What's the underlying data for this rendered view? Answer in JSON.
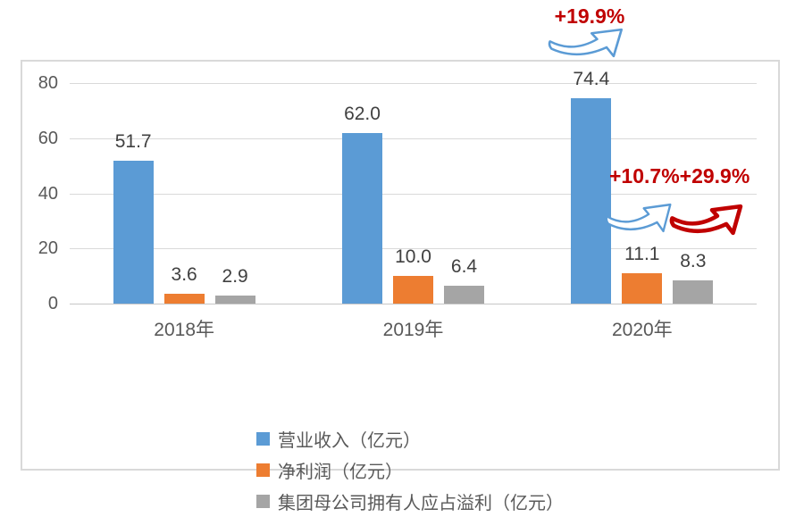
{
  "chart_data": {
    "type": "bar",
    "categories": [
      "2018年",
      "2019年",
      "2020年"
    ],
    "series": [
      {
        "name": "营业收入（亿元）",
        "color": "#5B9BD5",
        "values": [
          51.7,
          62.0,
          74.4
        ]
      },
      {
        "name": "净利润（亿元）",
        "color": "#ED7D31",
        "values": [
          3.6,
          10.0,
          11.1
        ]
      },
      {
        "name": "集团母公司拥有人应占溢利（亿元）",
        "color": "#A5A5A5",
        "values": [
          2.9,
          6.4,
          8.3
        ]
      }
    ],
    "data_labels": [
      "51.7",
      "3.6",
      "2.9",
      "62.0",
      "10.0",
      "6.4",
      "74.4",
      "11.1",
      "8.3"
    ],
    "y_ticks": [
      0,
      20,
      40,
      60,
      80
    ],
    "ylim": [
      0,
      80
    ],
    "grid": true,
    "legend_position": "bottom",
    "colors": {
      "gridline": "#D9D9D9",
      "tick_text": "#595959",
      "data_label_text": "#404040",
      "frame_border": "#D9D9D9"
    }
  },
  "annotations": {
    "top_growth": {
      "text": "+19.9%",
      "color": "#C00000",
      "arrow": "blue-outline-curved-up"
    },
    "mid_growth": [
      {
        "text": "+10.7%",
        "color": "#C00000",
        "arrow": "blue-outline-curved-up"
      },
      {
        "text": "+29.9%",
        "color": "#C00000",
        "arrow": "red-curved-up"
      }
    ],
    "arrow_blue": "#5B9BD5",
    "arrow_red": "#C00000"
  }
}
